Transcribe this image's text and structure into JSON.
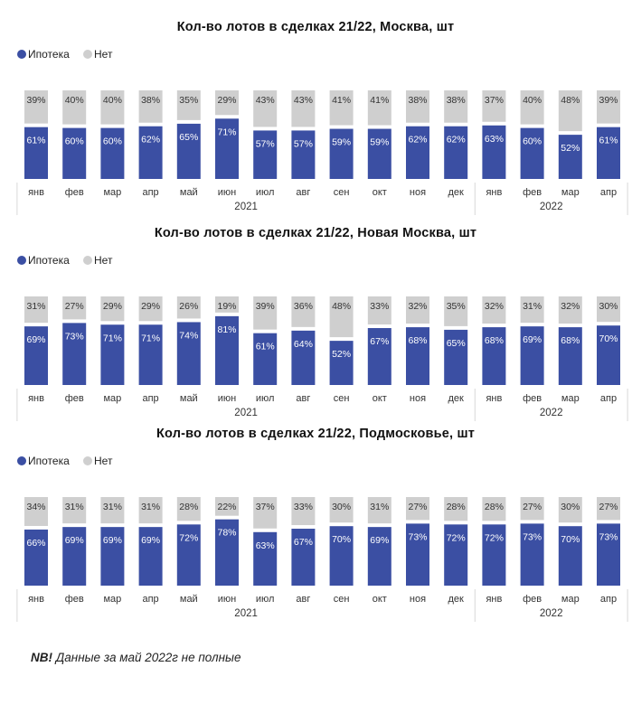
{
  "colors": {
    "mortgage": "#3b4fa3",
    "no_mortgage": "#cfcfcf"
  },
  "legend": {
    "mortgage_label": "Ипотека",
    "no_label": "Нет"
  },
  "note": {
    "bold": "NB!",
    "text": " Данные за май 2022г не полные"
  },
  "chart_data": [
    {
      "type": "bar",
      "stacked": "percent",
      "title": "Кол-во лотов в сделках 21/22, Москва, шт",
      "categories": [
        "янв",
        "фев",
        "мар",
        "апр",
        "май",
        "июн",
        "июл",
        "авг",
        "сен",
        "окт",
        "ноя",
        "дек",
        "янв",
        "фев",
        "мар",
        "апр"
      ],
      "year_groups": [
        {
          "label": "2021",
          "count": 12
        },
        {
          "label": "2022",
          "count": 4
        }
      ],
      "series": [
        {
          "name": "Ипотека",
          "values": [
            61,
            60,
            60,
            62,
            65,
            71,
            57,
            57,
            59,
            59,
            62,
            62,
            63,
            60,
            52,
            61
          ]
        },
        {
          "name": "Нет",
          "values": [
            39,
            40,
            40,
            38,
            35,
            29,
            43,
            43,
            41,
            41,
            38,
            38,
            37,
            40,
            48,
            39
          ]
        }
      ],
      "legend_position": "top-left"
    },
    {
      "type": "bar",
      "stacked": "percent",
      "title": "Кол-во лотов в сделках 21/22, Новая Москва, шт",
      "categories": [
        "янв",
        "фев",
        "мар",
        "апр",
        "май",
        "июн",
        "июл",
        "авг",
        "сен",
        "окт",
        "ноя",
        "дек",
        "янв",
        "фев",
        "мар",
        "апр"
      ],
      "year_groups": [
        {
          "label": "2021",
          "count": 12
        },
        {
          "label": "2022",
          "count": 4
        }
      ],
      "series": [
        {
          "name": "Ипотека",
          "values": [
            69,
            73,
            71,
            71,
            74,
            81,
            61,
            64,
            52,
            67,
            68,
            65,
            68,
            69,
            68,
            70
          ]
        },
        {
          "name": "Нет",
          "values": [
            31,
            27,
            29,
            29,
            26,
            19,
            39,
            36,
            48,
            33,
            32,
            35,
            32,
            31,
            32,
            30
          ]
        }
      ],
      "legend_position": "top-left"
    },
    {
      "type": "bar",
      "stacked": "percent",
      "title": "Кол-во лотов в сделках 21/22, Подмосковье, шт",
      "categories": [
        "янв",
        "фев",
        "мар",
        "апр",
        "май",
        "июн",
        "июл",
        "авг",
        "сен",
        "окт",
        "ноя",
        "дек",
        "янв",
        "фев",
        "мар",
        "апр"
      ],
      "year_groups": [
        {
          "label": "2021",
          "count": 12
        },
        {
          "label": "2022",
          "count": 4
        }
      ],
      "series": [
        {
          "name": "Ипотека",
          "values": [
            66,
            69,
            69,
            69,
            72,
            78,
            63,
            67,
            70,
            69,
            73,
            72,
            72,
            73,
            70,
            73
          ]
        },
        {
          "name": "Нет",
          "values": [
            34,
            31,
            31,
            31,
            28,
            22,
            37,
            33,
            30,
            31,
            27,
            28,
            28,
            27,
            30,
            27
          ]
        }
      ],
      "legend_position": "top-left"
    }
  ]
}
